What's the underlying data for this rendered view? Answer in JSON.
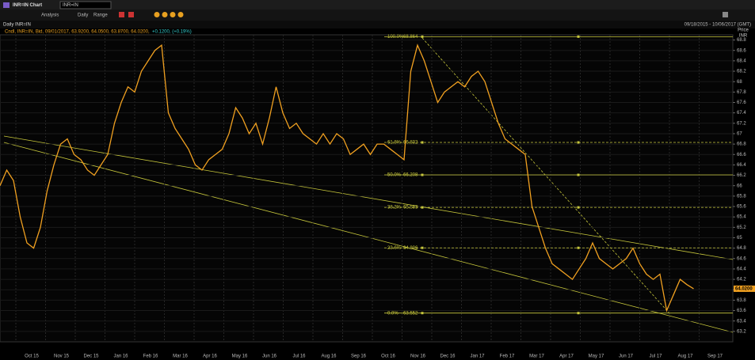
{
  "window": {
    "title": "INR=IN Chart",
    "search": "INR=IN"
  },
  "toolbar": {
    "analysis": "Analysis",
    "interval": "Daily",
    "range": "Range"
  },
  "header": {
    "name": "Daily INR=IN",
    "period": "09/18/2015 - 10/06/2017 (GMT)",
    "info": "Cndl, INR=IN, Bid, 09/01/2017, 63.9200, 64.0500, 63.8700, 64.0200,",
    "change": "+0.1200, (+0.19%)"
  },
  "chart_data": {
    "type": "line",
    "axis_title": "Price",
    "axis_unit": "INR",
    "color": "#f0a020",
    "ylim": [
      63.0,
      68.9
    ],
    "yticks": [
      63.2,
      63.4,
      63.6,
      63.8,
      64.0,
      64.2,
      64.4,
      64.6,
      64.8,
      65,
      65.2,
      65.4,
      65.6,
      65.8,
      66,
      66.2,
      66.4,
      66.6,
      66.8,
      67,
      67.2,
      67.4,
      67.6,
      67.8,
      68,
      68.2,
      68.4,
      68.6,
      68.8
    ],
    "last": {
      "value": 64.02,
      "label": "64.0200"
    },
    "months": [
      "Oct 15",
      "Nov 15",
      "Dec 15",
      "Jan 16",
      "Feb 16",
      "Mar 16",
      "Apr 16",
      "May 16",
      "Jun 16",
      "Jul 16",
      "Aug 16",
      "Sep 16",
      "Oct 16",
      "Nov 16",
      "Dec 16",
      "Jan 17",
      "Feb 17",
      "Mar 17",
      "Apr 17",
      "May 17",
      "Jun 17",
      "Jul 17",
      "Aug 17",
      "Sep 17"
    ],
    "values": [
      66.0,
      66.3,
      66.1,
      65.4,
      64.9,
      64.8,
      65.2,
      65.9,
      66.4,
      66.8,
      66.9,
      66.6,
      66.5,
      66.3,
      66.2,
      66.4,
      66.6,
      67.2,
      67.6,
      67.9,
      67.8,
      68.2,
      68.4,
      68.6,
      68.7,
      67.4,
      67.1,
      66.9,
      66.7,
      66.4,
      66.3,
      66.5,
      66.6,
      66.7,
      67.0,
      67.5,
      67.3,
      67.0,
      67.2,
      66.8,
      67.3,
      67.9,
      67.4,
      67.1,
      67.2,
      67.0,
      66.9,
      66.8,
      67.0,
      66.8,
      67.0,
      66.9,
      66.6,
      66.7,
      66.8,
      66.6,
      66.8,
      66.8,
      66.7,
      66.6,
      66.5,
      68.2,
      68.7,
      68.4,
      68.0,
      67.6,
      67.8,
      67.9,
      68.0,
      67.9,
      68.1,
      68.2,
      68.0,
      67.6,
      67.2,
      66.9,
      66.8,
      66.7,
      66.6,
      65.6,
      65.2,
      64.8,
      64.5,
      64.4,
      64.3,
      64.2,
      64.4,
      64.6,
      64.9,
      64.6,
      64.5,
      64.4,
      64.5,
      64.6,
      64.8,
      64.5,
      64.3,
      64.2,
      64.3,
      63.6,
      63.9,
      64.2,
      64.1,
      64.02
    ],
    "fib_levels": [
      {
        "ratio": "100.0%",
        "value": 68.864,
        "dashed": false
      },
      {
        "ratio": "61.8%",
        "value": 66.832,
        "dashed": true
      },
      {
        "ratio": "50.0%",
        "value": 66.208,
        "dashed": false
      },
      {
        "ratio": "38.2%",
        "value": 65.583,
        "dashed": true
      },
      {
        "ratio": "23.6%",
        "value": 64.806,
        "dashed": true
      },
      {
        "ratio": "0.0%",
        "value": 63.552,
        "dashed": false
      }
    ]
  }
}
